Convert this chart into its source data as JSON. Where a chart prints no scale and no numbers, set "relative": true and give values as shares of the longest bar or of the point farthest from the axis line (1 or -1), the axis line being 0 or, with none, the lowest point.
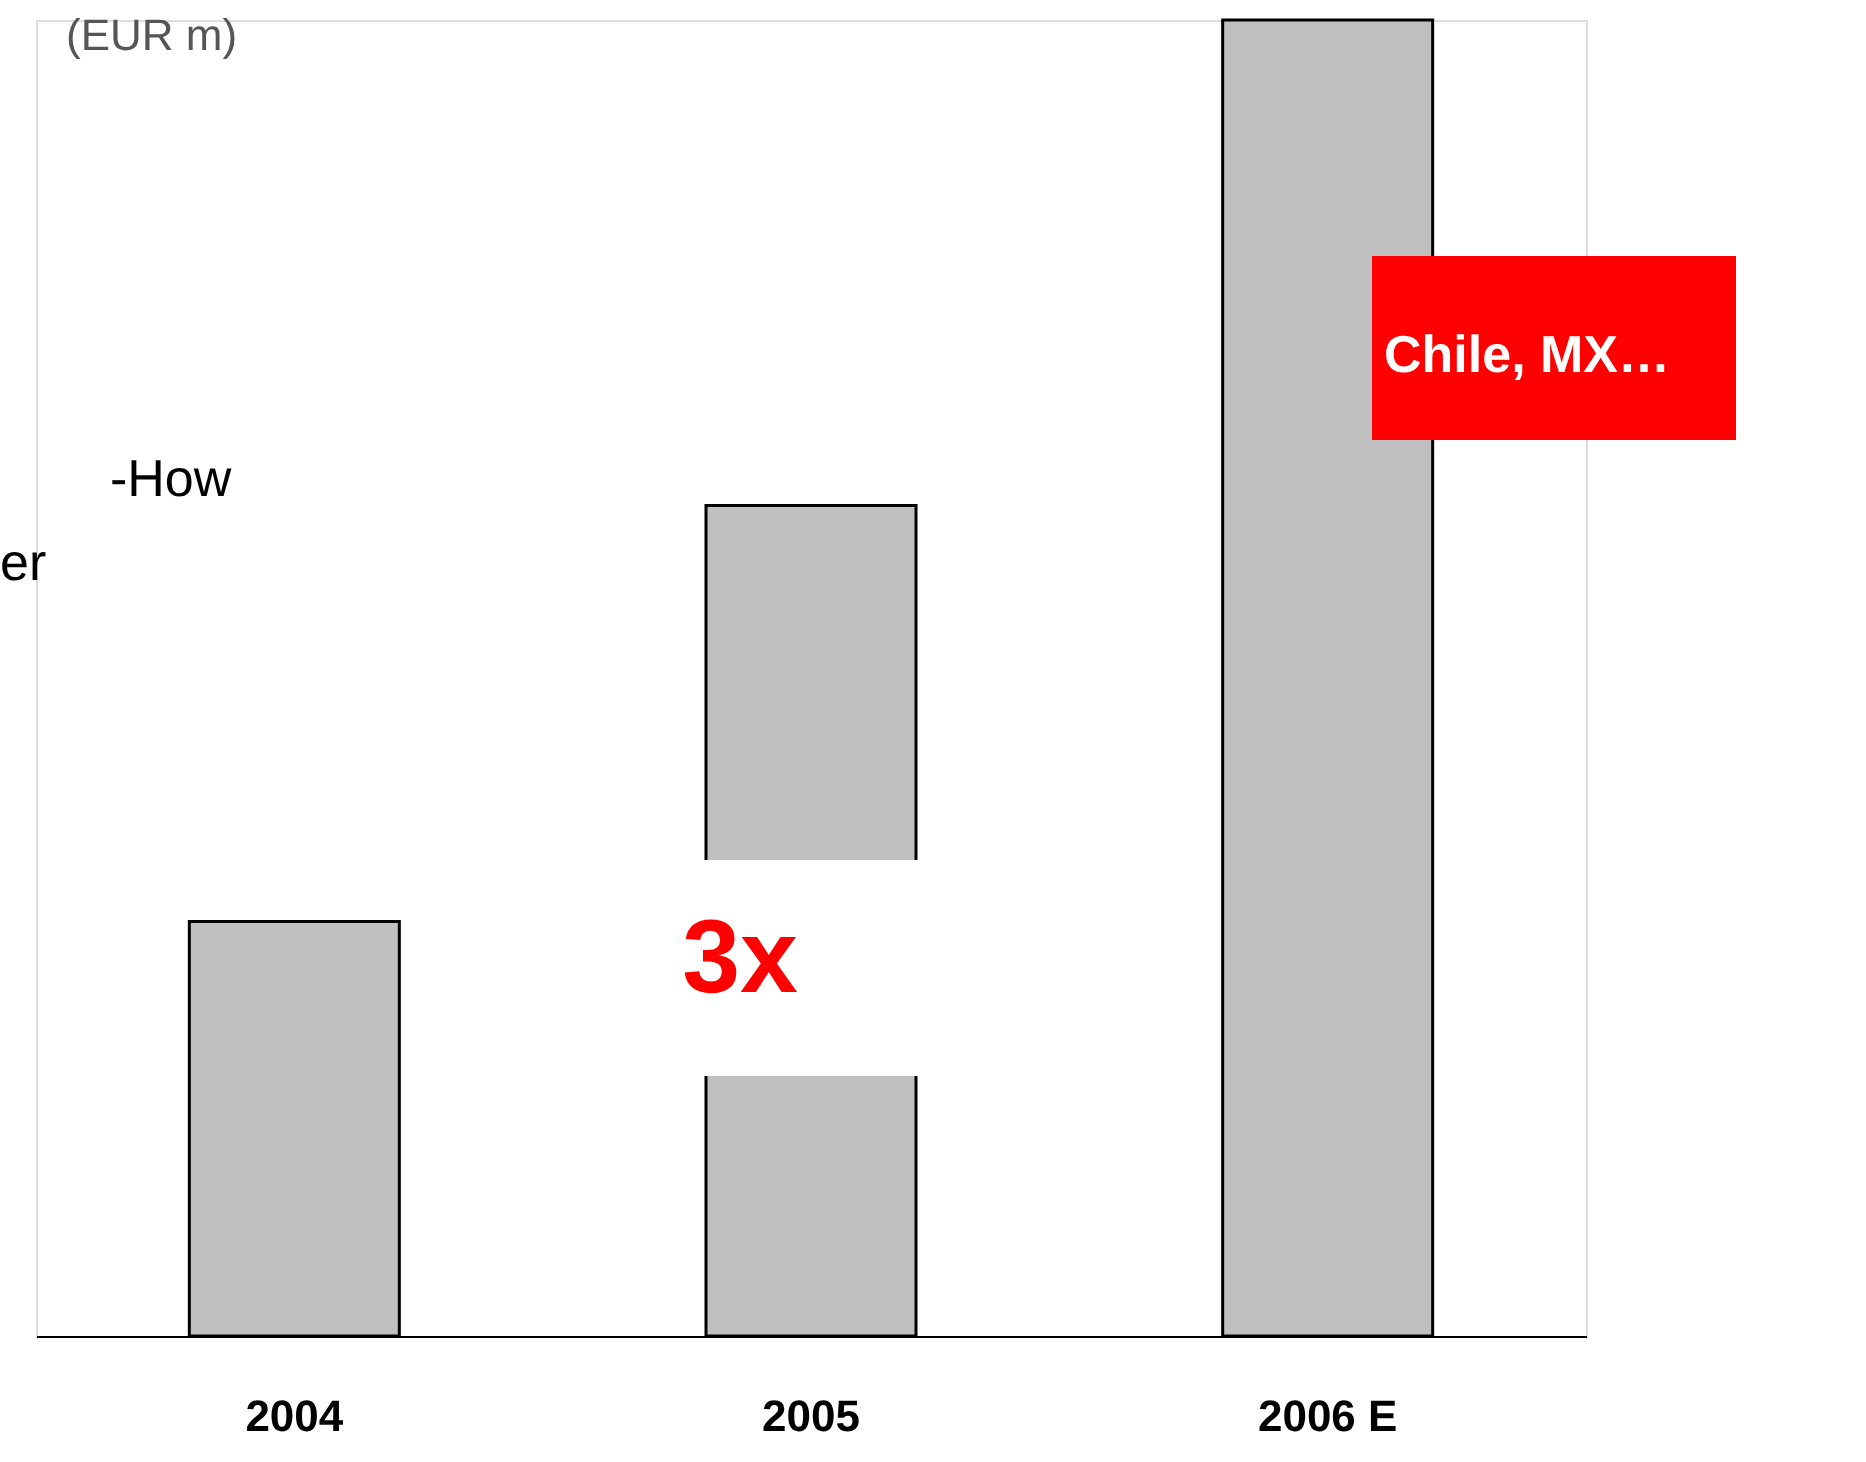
{
  "chart_data": {
    "type": "bar",
    "relative": true,
    "categories": [
      "2004",
      "2005",
      "2006 E"
    ],
    "values": [
      0.315,
      0.631,
      1
    ],
    "color": "#c0c0c0",
    "ylabel": "(EUR m)",
    "annotations": [
      "3x",
      "Chile, MX…",
      "-How",
      "er"
    ]
  }
}
